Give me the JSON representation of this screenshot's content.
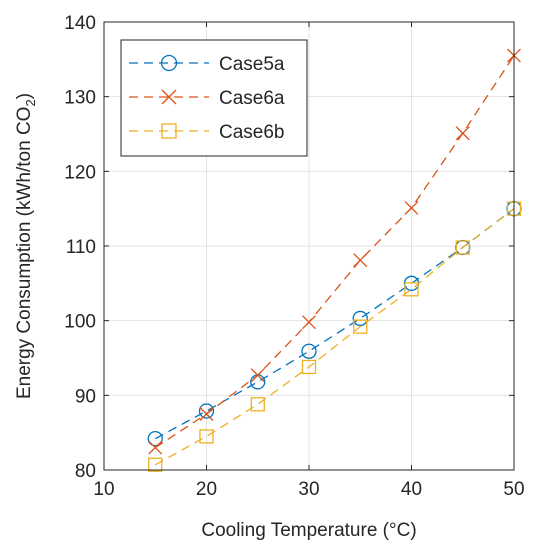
{
  "chart_data": {
    "type": "line",
    "title": "",
    "xlabel": "Cooling Temperature (°C)",
    "ylabel_main": "Energy Consumption (kWh/ton CO",
    "ylabel_sub": "2",
    "ylabel_end": ")",
    "xlim": [
      10,
      50
    ],
    "ylim": [
      80,
      140
    ],
    "xticks": [
      10,
      20,
      30,
      40,
      50
    ],
    "yticks": [
      80,
      90,
      100,
      110,
      120,
      130,
      140
    ],
    "grid": true,
    "legend_position": "top-left",
    "x": [
      15,
      20,
      25,
      30,
      35,
      40,
      45,
      50
    ],
    "series": [
      {
        "name": "Case5a",
        "color": "#0072BD",
        "marker": "circle",
        "line_style": "dashed",
        "values": [
          84.2,
          87.9,
          91.8,
          95.9,
          100.3,
          105.0,
          109.8,
          115.0
        ]
      },
      {
        "name": "Case6a",
        "color": "#D95319",
        "marker": "x",
        "line_style": "dashed",
        "values": [
          83.0,
          87.5,
          92.7,
          99.8,
          108.1,
          115.1,
          125.1,
          135.5
        ]
      },
      {
        "name": "Case6b",
        "color": "#EDB120",
        "marker": "square",
        "line_style": "dashed",
        "values": [
          80.7,
          84.5,
          88.8,
          93.8,
          99.2,
          104.2,
          109.8,
          115.0
        ]
      }
    ]
  }
}
